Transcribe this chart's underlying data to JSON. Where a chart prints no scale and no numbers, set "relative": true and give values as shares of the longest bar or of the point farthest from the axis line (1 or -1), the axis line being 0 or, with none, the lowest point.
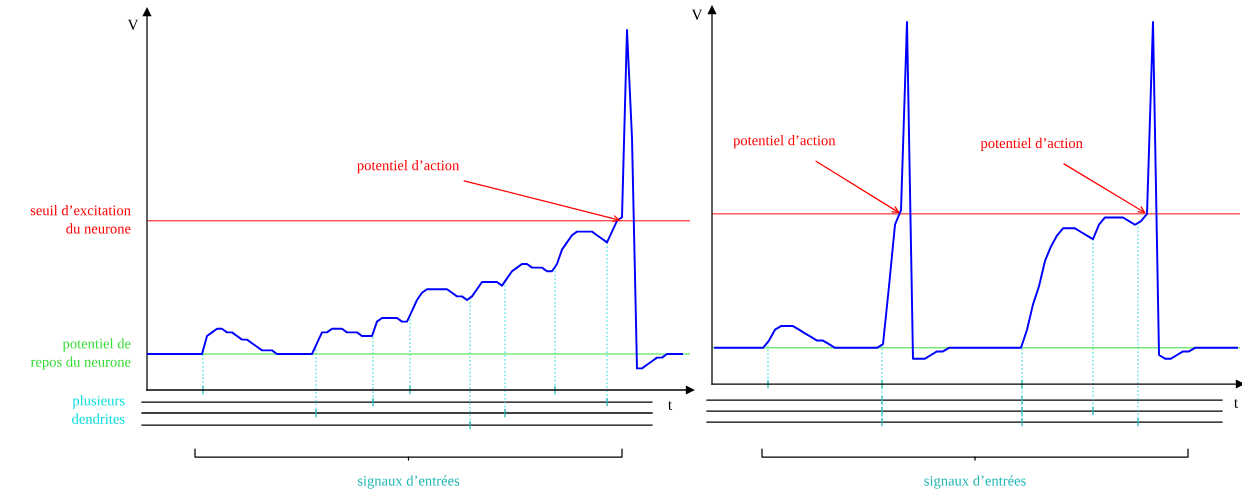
{
  "chart_data": [
    {
      "type": "line",
      "relative": true,
      "ylabel": "V",
      "xlabel": "t",
      "marker": "none",
      "line_style": "solid",
      "categories": [
        null,
        null,
        null,
        null,
        null,
        null,
        null,
        null,
        null,
        null,
        null,
        null,
        null,
        null,
        null,
        null,
        null,
        null,
        null,
        null,
        null,
        null,
        null,
        null,
        null,
        null,
        null,
        null,
        null,
        null,
        null,
        null,
        null,
        null,
        null,
        null,
        null,
        null,
        null,
        null,
        null,
        null,
        null,
        null,
        null,
        null,
        null,
        null,
        null,
        null,
        null,
        null,
        null,
        null,
        null,
        null,
        null,
        null,
        null,
        null,
        null,
        null,
        null,
        null,
        null,
        null,
        null,
        null,
        null,
        null,
        null,
        null,
        null,
        null,
        null,
        null,
        null,
        null,
        null,
        null,
        null,
        null,
        null,
        null,
        null,
        null,
        null,
        null,
        null,
        null,
        null,
        null,
        null,
        null,
        null,
        null,
        null,
        null,
        null,
        null,
        null,
        null,
        null,
        null,
        null,
        null,
        null,
        null
      ],
      "series": [
        {
          "color": "#0000ff",
          "values": [
            0.1,
            0.1,
            0.1,
            0.1,
            0.1,
            0.1,
            0.1,
            0.1,
            0.1,
            0.1,
            0.1,
            0.1,
            0.15,
            0.16,
            0.17,
            0.17,
            0.16,
            0.16,
            0.15,
            0.14,
            0.14,
            0.13,
            0.12,
            0.11,
            0.11,
            0.11,
            0.1,
            0.1,
            0.1,
            0.1,
            0.1,
            0.1,
            0.1,
            0.1,
            0.13,
            0.16,
            0.16,
            0.17,
            0.17,
            0.17,
            0.16,
            0.16,
            0.16,
            0.15,
            0.15,
            0.15,
            0.19,
            0.2,
            0.2,
            0.2,
            0.2,
            0.19,
            0.19,
            0.22,
            0.25,
            0.27,
            0.28,
            0.28,
            0.28,
            0.28,
            0.28,
            0.27,
            0.26,
            0.26,
            0.25,
            0.26,
            0.28,
            0.3,
            0.3,
            0.3,
            0.3,
            0.29,
            0.31,
            0.33,
            0.34,
            0.35,
            0.35,
            0.34,
            0.34,
            0.34,
            0.33,
            0.33,
            0.35,
            0.39,
            0.41,
            0.43,
            0.44,
            0.44,
            0.44,
            0.44,
            0.43,
            0.42,
            0.41,
            0.44,
            0.47,
            0.48,
            1.0,
            0.7,
            0.06,
            0.06,
            0.07,
            0.08,
            0.09,
            0.09,
            0.1,
            0.1,
            0.1,
            0.1
          ]
        }
      ],
      "ref_lines": [
        {
          "axis": "y",
          "value": 0.47,
          "label": "seuil d’excitation du neurone",
          "color": "#ff0000"
        },
        {
          "axis": "y",
          "value": 0.1,
          "label": "potentiel de repos du neurone",
          "color": "#33dd33"
        }
      ],
      "annotations": [
        "potentiel d’action",
        "plusieurs dendrites",
        "signaux d’entrées"
      ]
    },
    {
      "type": "line",
      "relative": true,
      "ylabel": "V",
      "xlabel": "t",
      "marker": "none",
      "line_style": "solid",
      "categories": [
        null,
        null,
        null,
        null,
        null,
        null,
        null,
        null,
        null,
        null,
        null,
        null,
        null,
        null,
        null,
        null,
        null,
        null,
        null,
        null,
        null,
        null,
        null,
        null,
        null,
        null,
        null,
        null,
        null,
        null,
        null,
        null,
        null,
        null,
        null,
        null,
        null,
        null,
        null,
        null,
        null,
        null,
        null,
        null,
        null,
        null,
        null,
        null,
        null,
        null,
        null,
        null,
        null,
        null,
        null,
        null,
        null,
        null,
        null,
        null,
        null,
        null,
        null,
        null,
        null,
        null,
        null,
        null,
        null,
        null,
        null,
        null,
        null,
        null,
        null,
        null,
        null,
        null,
        null,
        null,
        null,
        null,
        null,
        null,
        null,
        null,
        null,
        null
      ],
      "series": [
        {
          "color": "#0000ff",
          "values": [
            0.1,
            0.1,
            0.1,
            0.1,
            0.1,
            0.1,
            0.1,
            0.1,
            0.1,
            0.12,
            0.15,
            0.16,
            0.16,
            0.16,
            0.15,
            0.14,
            0.13,
            0.12,
            0.12,
            0.11,
            0.1,
            0.1,
            0.1,
            0.1,
            0.1,
            0.1,
            0.1,
            0.1,
            0.11,
            0.27,
            0.44,
            0.48,
            1.0,
            0.07,
            0.07,
            0.07,
            0.08,
            0.09,
            0.09,
            0.1,
            0.1,
            0.1,
            0.1,
            0.1,
            0.1,
            0.1,
            0.1,
            0.1,
            0.1,
            0.1,
            0.1,
            0.1,
            0.15,
            0.22,
            0.27,
            0.34,
            0.38,
            0.41,
            0.43,
            0.43,
            0.43,
            0.42,
            0.41,
            0.4,
            0.44,
            0.46,
            0.46,
            0.46,
            0.46,
            0.45,
            0.44,
            0.45,
            0.47,
            1.0,
            0.08,
            0.07,
            0.07,
            0.08,
            0.09,
            0.09,
            0.1,
            0.1,
            0.1,
            0.1,
            0.1,
            0.1,
            0.1,
            0.1
          ]
        }
      ],
      "ref_lines": [
        {
          "axis": "y",
          "value": 0.47,
          "color": "#ff0000"
        },
        {
          "axis": "y",
          "value": 0.1,
          "color": "#33dd33"
        }
      ],
      "annotations": [
        "potentiel d’action",
        "potentiel d’action",
        "signaux d’entrées"
      ]
    }
  ]
}
